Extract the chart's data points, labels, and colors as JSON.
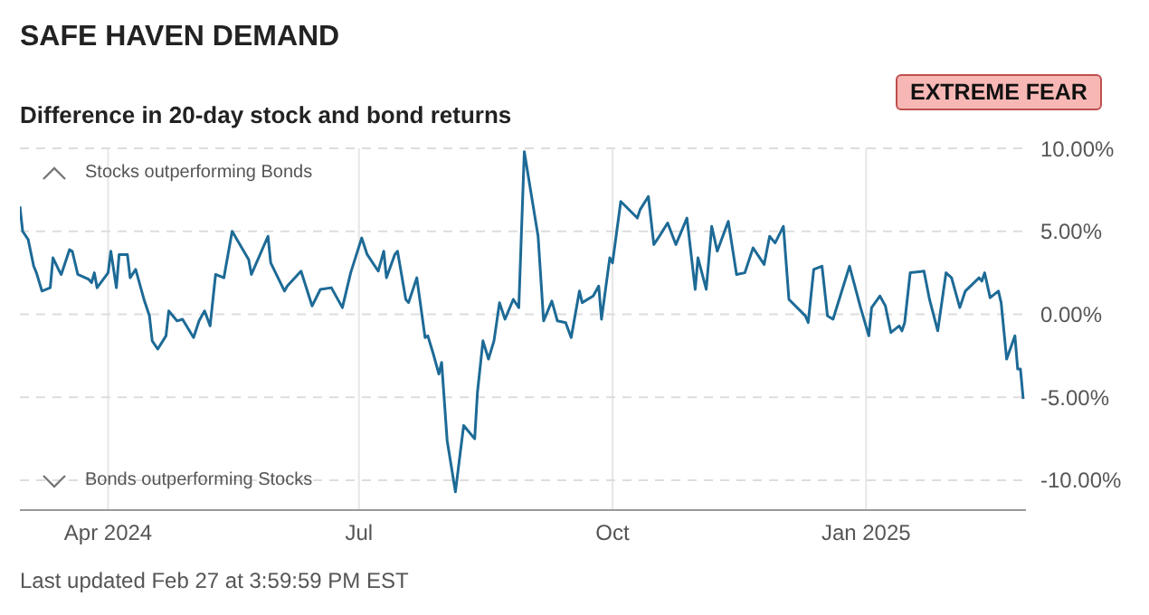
{
  "chart_data": {
    "type": "line",
    "title": "SAFE HAVEN DEMAND",
    "subtitle": "Difference in 20-day stock and bond returns",
    "annotations": [
      "EXTREME FEAR",
      "Stocks outperforming Bonds",
      "Bonds outperforming Stocks",
      "Last updated Feb 27 at 3:59:59 PM EST"
    ],
    "x": [
      "2024-02-29",
      "2024-03-01",
      "2024-03-03",
      "2024-03-05",
      "2024-03-06",
      "2024-03-08",
      "2024-03-11",
      "2024-03-12",
      "2024-03-14",
      "2024-03-15",
      "2024-03-18",
      "2024-03-19",
      "2024-03-21",
      "2024-03-25",
      "2024-03-26",
      "2024-03-27",
      "2024-03-28",
      "2024-04-01",
      "2024-04-02",
      "2024-04-04",
      "2024-04-05",
      "2024-04-08",
      "2024-04-09",
      "2024-04-11",
      "2024-04-14",
      "2024-04-16",
      "2024-04-17",
      "2024-04-19",
      "2024-04-22",
      "2024-04-23",
      "2024-04-26",
      "2024-04-28",
      "2024-05-02",
      "2024-05-04",
      "2024-05-06",
      "2024-05-08",
      "2024-05-10",
      "2024-05-13",
      "2024-05-16",
      "2024-05-22",
      "2024-05-23",
      "2024-05-29",
      "2024-05-30",
      "2024-06-04",
      "2024-06-05",
      "2024-06-10",
      "2024-06-14",
      "2024-06-17",
      "2024-06-21",
      "2024-06-25",
      "2024-06-28",
      "2024-07-02",
      "2024-07-04",
      "2024-07-08",
      "2024-07-10",
      "2024-07-11",
      "2024-07-14",
      "2024-07-15",
      "2024-07-18",
      "2024-07-19",
      "2024-07-22",
      "2024-07-25",
      "2024-07-26",
      "2024-07-28",
      "2024-07-30",
      "2024-07-31",
      "2024-08-02",
      "2024-08-05",
      "2024-08-08",
      "2024-08-12",
      "2024-08-13",
      "2024-08-15",
      "2024-08-17",
      "2024-08-19",
      "2024-08-21",
      "2024-08-23",
      "2024-08-26",
      "2024-08-28",
      "2024-08-30",
      "2024-09-04",
      "2024-09-06",
      "2024-09-09",
      "2024-09-11",
      "2024-09-14",
      "2024-09-16",
      "2024-09-19",
      "2024-09-20",
      "2024-09-24",
      "2024-09-26",
      "2024-09-27",
      "2024-09-30",
      "2024-10-01",
      "2024-10-04",
      "2024-10-10",
      "2024-10-11",
      "2024-10-14",
      "2024-10-16",
      "2024-10-18",
      "2024-10-21",
      "2024-10-24",
      "2024-10-28",
      "2024-10-31",
      "2024-11-01",
      "2024-11-04",
      "2024-11-06",
      "2024-11-08",
      "2024-11-12",
      "2024-11-15",
      "2024-11-18",
      "2024-11-21",
      "2024-11-25",
      "2024-11-27",
      "2024-11-29",
      "2024-12-02",
      "2024-12-04",
      "2024-12-10",
      "2024-12-11",
      "2024-12-13",
      "2024-12-16",
      "2024-12-18",
      "2024-12-20",
      "2024-12-26",
      "2024-12-30",
      "2025-01-02",
      "2025-01-03",
      "2025-01-06",
      "2025-01-08",
      "2025-01-10",
      "2025-01-13",
      "2025-01-14",
      "2025-01-15",
      "2025-01-17",
      "2025-01-22",
      "2025-01-24",
      "2025-01-27",
      "2025-01-30",
      "2025-02-01",
      "2025-02-04",
      "2025-02-06",
      "2025-02-11",
      "2025-02-12",
      "2025-02-13",
      "2025-02-15",
      "2025-02-18",
      "2025-02-19",
      "2025-02-21",
      "2025-02-24",
      "2025-02-25",
      "2025-02-26",
      "2025-02-27"
    ],
    "series": [
      {
        "color": "#1d6a96",
        "values": [
          6.5,
          5.0,
          4.5,
          2.9,
          2.5,
          1.4,
          1.6,
          3.4,
          2.7,
          2.4,
          3.9,
          3.8,
          2.4,
          2.1,
          1.9,
          2.5,
          1.6,
          2.5,
          3.8,
          1.6,
          3.6,
          3.6,
          2.2,
          2.7,
          0.9,
          -0.1,
          -1.6,
          -2.1,
          -1.3,
          0.2,
          -0.4,
          -0.3,
          -1.4,
          -0.4,
          0.2,
          -0.7,
          2.4,
          2.2,
          5.0,
          3.3,
          2.4,
          4.7,
          3.1,
          1.4,
          1.7,
          2.6,
          0.5,
          1.5,
          1.6,
          0.4,
          2.5,
          4.6,
          3.6,
          2.6,
          3.8,
          2.2,
          3.6,
          3.8,
          0.9,
          0.7,
          2.2,
          -1.4,
          -1.3,
          -2.4,
          -3.6,
          -2.9,
          -7.6,
          -10.7,
          -6.7,
          -7.5,
          -4.7,
          -1.6,
          -2.7,
          -1.6,
          0.7,
          -0.3,
          0.9,
          0.4,
          9.8,
          4.7,
          -0.4,
          0.8,
          -0.4,
          -0.5,
          -1.4,
          1.4,
          0.7,
          1.1,
          1.7,
          -0.3,
          3.4,
          3.1,
          6.8,
          5.8,
          6.3,
          7.1,
          4.2,
          4.7,
          5.5,
          4.2,
          5.8,
          1.5,
          3.4,
          1.5,
          5.3,
          3.8,
          5.6,
          2.4,
          2.5,
          4.0,
          3.0,
          4.7,
          4.3,
          5.3,
          0.9,
          -0.1,
          -0.5,
          2.7,
          2.9,
          -0.1,
          -0.3,
          2.9,
          0.4,
          -1.3,
          0.4,
          1.1,
          0.5,
          -1.1,
          -0.7,
          -1.0,
          -0.5,
          2.5,
          2.6,
          0.9,
          -1.0,
          2.5,
          2.2,
          0.4,
          1.4,
          2.2,
          2.0,
          2.5,
          1.0,
          1.4,
          0.7,
          -2.7,
          -1.3,
          -3.3,
          -3.3,
          -5.1
        ]
      }
    ],
    "xlim": [
      "2024-02-29",
      "2025-02-28"
    ],
    "xticks": [
      {
        "value": "2024-04-01",
        "label": "Apr 2024"
      },
      {
        "value": "2024-07-01",
        "label": "Jul"
      },
      {
        "value": "2024-10-01",
        "label": "Oct"
      },
      {
        "value": "2025-01-01",
        "label": "Jan 2025"
      }
    ],
    "ylim": [
      -11.8,
      10
    ],
    "yticks": [
      {
        "value": 10,
        "label": "10.00%"
      },
      {
        "value": 5,
        "label": "5.00%"
      },
      {
        "value": 0,
        "label": "0.00%"
      },
      {
        "value": -5,
        "label": "-5.00%"
      },
      {
        "value": -10,
        "label": "-10.00%"
      }
    ],
    "grid": true,
    "marker": "none",
    "line_style": "solid",
    "legend": false
  }
}
